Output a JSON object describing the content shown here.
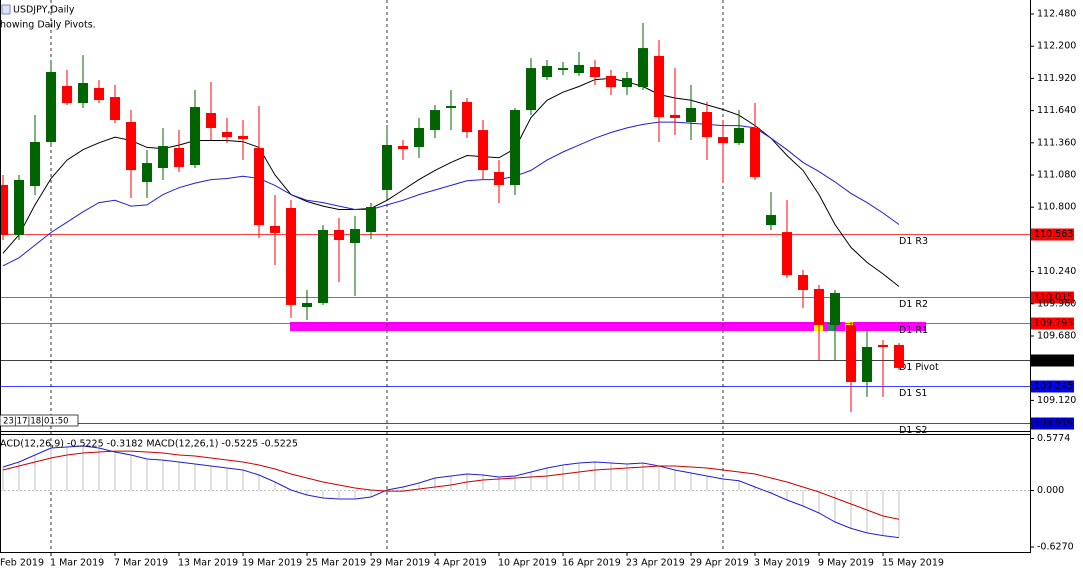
{
  "header": {
    "symbol": "USDJPY,Daily",
    "note": "howing Daily Pivots."
  },
  "timer": "23|17|18|01:50",
  "chart_data": [
    {
      "type": "candlestick",
      "first_label": "Feb 2019",
      "categories": [
        null,
        null,
        null,
        "1 Mar 2019",
        null,
        null,
        null,
        "7 Mar 2019",
        null,
        null,
        null,
        "13 Mar 2019",
        null,
        null,
        null,
        "19 Mar 2019",
        null,
        null,
        null,
        "25 Mar 2019",
        null,
        null,
        null,
        "29 Mar 2019",
        null,
        null,
        null,
        "4 Apr 2019",
        null,
        null,
        null,
        "10 Apr 2019",
        null,
        null,
        null,
        "16 Apr 2019",
        null,
        null,
        null,
        "23 Apr 2019",
        null,
        null,
        null,
        "29 Apr 2019",
        null,
        null,
        null,
        "3 May 2019",
        null,
        null,
        null,
        "9 May 2019",
        null,
        null,
        null,
        "15 May 2019",
        null
      ],
      "open": [
        110.993,
        110.558,
        110.984,
        111.367,
        111.854,
        111.706,
        111.837,
        111.758,
        111.541,
        111.019,
        111.141,
        111.315,
        111.167,
        111.619,
        111.454,
        111.419,
        111.315,
        110.637,
        110.793,
        109.932,
        109.967,
        110.602,
        110.489,
        110.584,
        110.95,
        111.332,
        111.323,
        111.471,
        111.663,
        111.715,
        111.471,
        111.106,
        110.993,
        111.645,
        111.932,
        111.993,
        111.967,
        112.019,
        111.941,
        111.845,
        111.845,
        112.115,
        111.602,
        111.541,
        111.628,
        111.41,
        111.358,
        111.489,
        110.645,
        110.584,
        110.21,
        110.089,
        109.776,
        109.776,
        109.28,
        109.602,
        109.602
      ],
      "high": [
        111.08,
        111.08,
        111.602,
        112.08,
        111.993,
        112.123,
        111.906,
        111.863,
        111.645,
        111.297,
        111.489,
        111.471,
        111.819,
        111.889,
        111.576,
        111.558,
        111.68,
        110.906,
        110.863,
        110.08,
        110.645,
        110.706,
        110.724,
        110.837,
        111.515,
        111.384,
        111.576,
        111.689,
        111.819,
        111.75,
        111.558,
        111.21,
        111.663,
        112.097,
        112.08,
        112.063,
        112.15,
        112.08,
        111.993,
        111.976,
        112.402,
        112.254,
        112.01,
        111.863,
        111.715,
        111.558,
        111.645,
        111.706,
        110.932,
        110.863,
        110.254,
        110.123,
        110.08,
        109.802,
        109.732,
        109.645,
        109.619
      ],
      "low": [
        110.515,
        110.515,
        110.906,
        111.341,
        111.689,
        111.663,
        111.706,
        111.532,
        110.88,
        110.88,
        111.037,
        111.106,
        111.141,
        111.384,
        111.358,
        111.21,
        110.532,
        110.297,
        109.837,
        109.819,
        109.95,
        110.15,
        110.028,
        110.523,
        110.88,
        111.21,
        111.228,
        111.402,
        111.471,
        111.402,
        111.037,
        110.837,
        110.906,
        111.602,
        111.906,
        111.95,
        111.941,
        111.863,
        111.776,
        111.776,
        111.819,
        111.367,
        111.428,
        111.384,
        111.21,
        111.01,
        111.341,
        111.037,
        110.602,
        110.184,
        109.923,
        109.471,
        109.471,
        109.019,
        109.15,
        109.15,
        109.384
      ],
      "close": [
        110.558,
        111.037,
        111.367,
        111.976,
        111.706,
        111.88,
        111.732,
        111.558,
        111.123,
        111.184,
        111.332,
        111.15,
        111.671,
        111.489,
        111.41,
        111.393,
        110.645,
        110.576,
        109.95,
        109.967,
        110.602,
        110.515,
        110.61,
        110.802,
        111.341,
        111.306,
        111.489,
        111.645,
        111.68,
        111.454,
        111.123,
        110.993,
        111.645,
        112.01,
        112.028,
        112.01,
        112.037,
        111.932,
        111.845,
        111.923,
        112.184,
        111.584,
        111.576,
        111.663,
        111.41,
        111.358,
        111.489,
        111.063,
        110.732,
        110.21,
        110.08,
        109.776,
        110.054,
        109.28,
        109.584,
        109.584,
        109.402
      ],
      "up_color": "#006400",
      "down_color": "#ff0000",
      "series": [
        {
          "color": "#000000",
          "values": [
            110.4,
            110.56,
            110.82,
            111.05,
            111.21,
            111.3,
            111.36,
            111.41,
            111.38,
            111.32,
            111.31,
            111.34,
            111.38,
            111.38,
            111.38,
            111.37,
            111.32,
            111.08,
            110.91,
            110.85,
            110.81,
            110.78,
            110.78,
            110.79,
            110.86,
            110.95,
            111.04,
            111.12,
            111.19,
            111.25,
            111.24,
            111.23,
            111.31,
            111.58,
            111.73,
            111.8,
            111.85,
            111.91,
            111.92,
            111.89,
            111.85,
            111.78,
            111.75,
            111.73,
            111.69,
            111.65,
            111.6,
            111.51,
            111.4,
            111.25,
            111.12,
            110.91,
            110.65,
            110.45,
            110.32,
            110.22,
            110.11
          ]
        },
        {
          "color": "#2020d0",
          "values": [
            110.29,
            110.36,
            110.47,
            110.58,
            110.67,
            110.76,
            110.84,
            110.86,
            110.81,
            110.82,
            110.91,
            110.97,
            111.01,
            111.04,
            111.05,
            111.07,
            111.05,
            110.99,
            110.91,
            110.86,
            110.84,
            110.81,
            110.78,
            110.78,
            110.82,
            110.86,
            110.91,
            110.95,
            110.99,
            111.03,
            111.04,
            111.04,
            111.07,
            111.12,
            111.21,
            111.28,
            111.34,
            111.4,
            111.45,
            111.49,
            111.52,
            111.54,
            111.54,
            111.53,
            111.52,
            111.51,
            111.51,
            111.49,
            111.4,
            111.3,
            111.19,
            111.11,
            111.02,
            110.92,
            110.84,
            110.75,
            110.65
          ]
        }
      ],
      "pivots": [
        {
          "name": "D1 R3",
          "value": 110.563,
          "color": "#ff0000"
        },
        {
          "name": "D1 R2",
          "value": 110.015,
          "color": "#ff0000"
        },
        {
          "name": "D1 R1",
          "value": 109.793,
          "color": "#ff0000"
        },
        {
          "name": "D1 Pivot",
          "value": 109.467,
          "color": "#000000"
        },
        {
          "name": "D1 S1",
          "value": 109.245,
          "color": "#0000ff"
        },
        {
          "name": "D1 S2",
          "value": 108.919,
          "color": "#0000cd"
        }
      ],
      "ylim": [
        108.845,
        112.602
      ],
      "yticks": [
        {
          "value": 112.48,
          "label": "112.480"
        },
        {
          "value": 112.2,
          "label": "112.200"
        },
        {
          "value": 111.92,
          "label": "111.920"
        },
        {
          "value": 111.64,
          "label": "111.640"
        },
        {
          "value": 111.36,
          "label": "111.360"
        },
        {
          "value": 111.08,
          "label": "111.080"
        },
        {
          "value": 110.8,
          "label": "110.800"
        },
        {
          "value": 110.24,
          "label": "110.240"
        },
        {
          "value": 109.96,
          "label": "109.960"
        },
        {
          "value": 109.68,
          "label": "109.680"
        },
        {
          "value": 109.12,
          "label": "109.120"
        }
      ]
    },
    {
      "type": "macd",
      "title": "ACD(12,26,9) -0.5225 -0.3182 MACD(12,26,1) -0.5225 -0.5225",
      "histogram_color": "#c0c0c0",
      "series": [
        {
          "color": "#2020d0",
          "values": [
            0.261,
            0.316,
            0.394,
            0.472,
            0.483,
            0.494,
            0.472,
            0.427,
            0.394,
            0.35,
            0.338,
            0.316,
            0.294,
            0.272,
            0.25,
            0.228,
            0.172,
            0.094,
            0.006,
            -0.05,
            -0.083,
            -0.094,
            -0.094,
            -0.072,
            0.006,
            0.039,
            0.083,
            0.139,
            0.161,
            0.183,
            0.172,
            0.15,
            0.161,
            0.205,
            0.25,
            0.283,
            0.305,
            0.316,
            0.305,
            0.294,
            0.305,
            0.272,
            0.228,
            0.194,
            0.161,
            0.128,
            0.108,
            0.039,
            -0.028,
            -0.105,
            -0.172,
            -0.25,
            -0.35,
            -0.42,
            -0.47,
            -0.5,
            -0.5225
          ]
        },
        {
          "color": "#cc0000",
          "values": [
            0.228,
            0.272,
            0.316,
            0.361,
            0.394,
            0.416,
            0.427,
            0.438,
            0.438,
            0.427,
            0.416,
            0.394,
            0.383,
            0.361,
            0.339,
            0.316,
            0.283,
            0.239,
            0.183,
            0.139,
            0.094,
            0.061,
            0.028,
            0.006,
            -0.006,
            -0.006,
            0.017,
            0.039,
            0.061,
            0.094,
            0.117,
            0.128,
            0.139,
            0.15,
            0.161,
            0.183,
            0.205,
            0.228,
            0.239,
            0.25,
            0.261,
            0.272,
            0.272,
            0.261,
            0.25,
            0.228,
            0.205,
            0.183,
            0.139,
            0.094,
            0.039,
            -0.017,
            -0.083,
            -0.15,
            -0.216,
            -0.283,
            -0.3182
          ]
        }
      ],
      "ylim": [
        -0.6825,
        0.6273
      ],
      "yticks": [
        0.5774,
        {
          "value": 0,
          "label": "0.000"
        },
        {
          "value": -0.627,
          "label": "-0.6270"
        }
      ]
    }
  ]
}
